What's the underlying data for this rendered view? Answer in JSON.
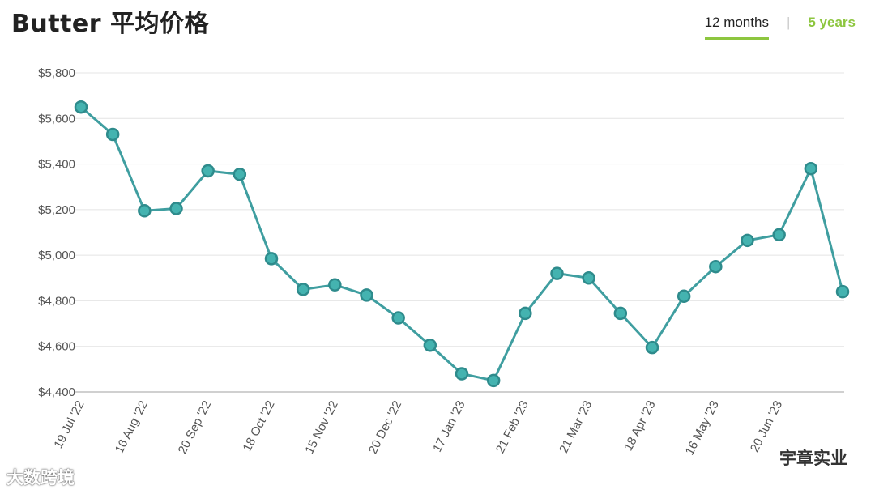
{
  "title": "Butter 平均价格",
  "tabs": [
    {
      "label": "12 months",
      "active": true
    },
    {
      "label": "5 years",
      "active": false
    }
  ],
  "tab_separator": "|",
  "colors": {
    "line": "#3f9ea0",
    "point": "#44b3b0",
    "accent": "#8dc63f"
  },
  "watermarks": {
    "left": "大数跨境",
    "right": "宇章实业"
  },
  "chart_data": {
    "type": "line",
    "title": "Butter 平均价格",
    "xlabel": "",
    "ylabel": "",
    "ylim": [
      4400,
      5800
    ],
    "yticks": [
      4400,
      4600,
      4800,
      5000,
      5200,
      5400,
      5600,
      5800
    ],
    "ytick_labels": [
      "$4,400",
      "$4,600",
      "$4,800",
      "$5,000",
      "$5,200",
      "$5,400",
      "$5,600",
      "$5,800"
    ],
    "xtick_labels": [
      "19 Jul '22",
      "16 Aug '22",
      "20 Sep '22",
      "18 Oct '22",
      "15 Nov '22",
      "20 Dec '22",
      "17 Jan '23",
      "21 Feb '23",
      "21 Mar '23",
      "18 Apr '23",
      "16 May '23",
      "20 Jun '23"
    ],
    "xtick_indices": [
      0,
      2,
      4,
      6,
      8,
      10,
      12,
      14,
      16,
      18,
      20,
      22
    ],
    "grid": true,
    "legend": "none",
    "series": [
      {
        "values": [
          5650,
          5530,
          5195,
          5205,
          5370,
          5355,
          4985,
          4850,
          4870,
          4825,
          4725,
          4605,
          4480,
          4450,
          4745,
          4920,
          4900,
          4745,
          4595,
          4820,
          4950,
          5065,
          5090,
          5380,
          4840
        ]
      }
    ]
  }
}
